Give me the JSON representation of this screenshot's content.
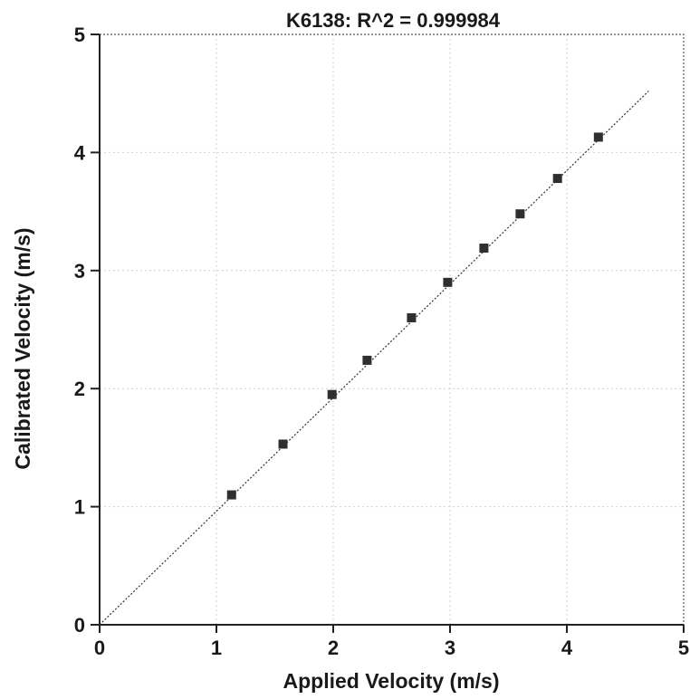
{
  "chart_data": {
    "type": "scatter",
    "title": "K6138: R^2 = 0.999984",
    "xlabel": "Applied Velocity (m/s)",
    "ylabel": "Calibrated Velocity (m/s)",
    "xlim": [
      0,
      5
    ],
    "ylim": [
      0,
      5
    ],
    "xticks": [
      "0",
      "1",
      "2",
      "3",
      "4",
      "5"
    ],
    "yticks": [
      "0",
      "1",
      "2",
      "3",
      "4",
      "5"
    ],
    "grid": true,
    "legend": "none",
    "marker_color": "#2f2f2f",
    "series": [
      {
        "x": [
          1.13,
          1.57,
          1.99,
          2.29,
          2.67,
          2.98,
          3.29,
          3.6,
          3.92,
          4.27
        ],
        "y": [
          1.1,
          1.53,
          1.95,
          2.24,
          2.6,
          2.9,
          3.19,
          3.48,
          3.78,
          4.13
        ]
      }
    ],
    "fit_line": {
      "x": [
        0,
        4.7
      ],
      "y": [
        0,
        4.52
      ]
    }
  }
}
